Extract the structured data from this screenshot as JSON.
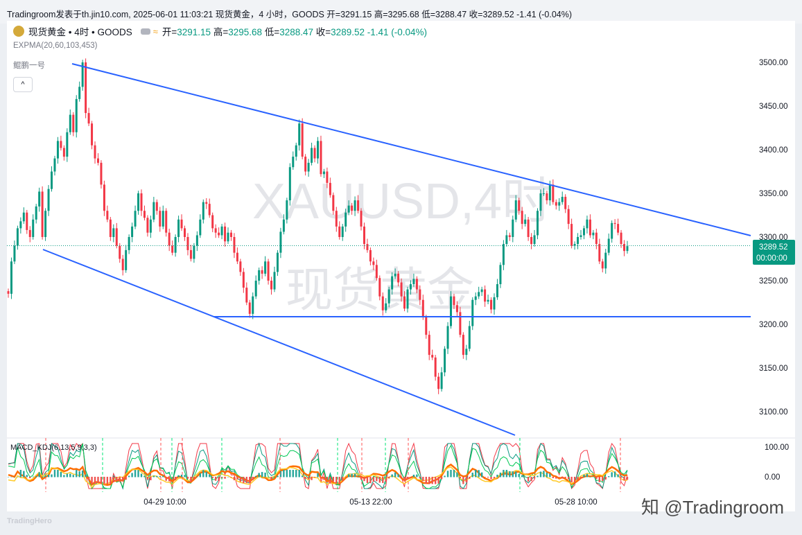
{
  "header": {
    "caption": "Tradingroom发表于th.jin10.com, 2025-06-01 11:03:21 现货黄金，4 小时，GOODS 开=3291.15 高=3295.68 低=3288.47 收=3289.52 -1.41 (-0.04%)"
  },
  "legend": {
    "symbol": "现货黄金 • 4时 • GOODS",
    "open_label": "开=",
    "open": "3291.15",
    "high_label": "高=",
    "high": "3295.68",
    "low_label": "低=",
    "low": "3288.47",
    "close_label": "收=",
    "close": "3289.52",
    "change": "-1.41 (-0.04%)",
    "indicator": "EXPMA(20,60,103,453)",
    "author": "鲲鹏一号",
    "collapse_icon": "^",
    "macd": "MACD_KDJ(6,13,5,9,3,3)"
  },
  "watermark": {
    "line1": "XAUUSD,4时",
    "line2": "现货黄金"
  },
  "price_tag": {
    "value": "3289.52",
    "countdown": "00:00:00",
    "color": "#089981"
  },
  "colors": {
    "up": "#089981",
    "down": "#f23645",
    "trendline": "#2962ff"
  },
  "footer": {
    "brand": "TradingHero",
    "credit": "知 @Tradingroom"
  },
  "chart_data": {
    "type": "candlestick",
    "title": "现货黄金 • 4时 • GOODS",
    "xlabel": "",
    "ylabel": "",
    "x_ticks": [
      "04-29 10:00",
      "05-13 22:00",
      "05-28 10:00"
    ],
    "y_ticks": [
      "3500.00",
      "3450.00",
      "3400.00",
      "3350.00",
      "3300.00",
      "3250.00",
      "3200.00",
      "3150.00",
      "3100.00"
    ],
    "ylim": [
      3078,
      3525
    ],
    "macd_ticks": [
      "100.00",
      "0.00"
    ],
    "last_price": 3289.52,
    "grid": false,
    "closes": [
      3235,
      3272,
      3290,
      3310,
      3318,
      3328,
      3308,
      3300,
      3320,
      3335,
      3352,
      3300,
      3330,
      3355,
      3375,
      3390,
      3410,
      3402,
      3392,
      3420,
      3440,
      3420,
      3458,
      3472,
      3500,
      3442,
      3430,
      3405,
      3390,
      3385,
      3360,
      3330,
      3320,
      3300,
      3310,
      3290,
      3275,
      3262,
      3285,
      3300,
      3312,
      3330,
      3350,
      3330,
      3322,
      3305,
      3320,
      3340,
      3330,
      3312,
      3330,
      3305,
      3290,
      3282,
      3300,
      3320,
      3310,
      3300,
      3285,
      3275,
      3290,
      3302,
      3320,
      3340,
      3338,
      3325,
      3310,
      3305,
      3302,
      3312,
      3295,
      3305,
      3300,
      3282,
      3272,
      3260,
      3242,
      3225,
      3212,
      3232,
      3250,
      3262,
      3258,
      3272,
      3250,
      3240,
      3260,
      3282,
      3306,
      3320,
      3342,
      3380,
      3392,
      3405,
      3430,
      3392,
      3375,
      3385,
      3402,
      3390,
      3410,
      3372,
      3375,
      3362,
      3348,
      3330,
      3312,
      3300,
      3312,
      3328,
      3336,
      3330,
      3342,
      3330,
      3312,
      3292,
      3285,
      3272,
      3268,
      3253,
      3232,
      3216,
      3224,
      3240,
      3255,
      3258,
      3248,
      3232,
      3218,
      3240,
      3246,
      3252,
      3240,
      3228,
      3208,
      3188,
      3165,
      3162,
      3140,
      3126,
      3145,
      3172,
      3198,
      3232,
      3222,
      3214,
      3188,
      3165,
      3172,
      3198,
      3228,
      3232,
      3237,
      3240,
      3226,
      3228,
      3217,
      3231,
      3246,
      3268,
      3292,
      3302,
      3300,
      3320,
      3342,
      3330,
      3315,
      3320,
      3300,
      3292,
      3302,
      3330,
      3350,
      3350,
      3342,
      3360,
      3340,
      3336,
      3340,
      3346,
      3332,
      3315,
      3290,
      3292,
      3300,
      3302,
      3310,
      3320,
      3302,
      3305,
      3292,
      3272,
      3264,
      3282,
      3298,
      3316,
      3315,
      3305,
      3292,
      3284,
      3289.52
    ]
  }
}
